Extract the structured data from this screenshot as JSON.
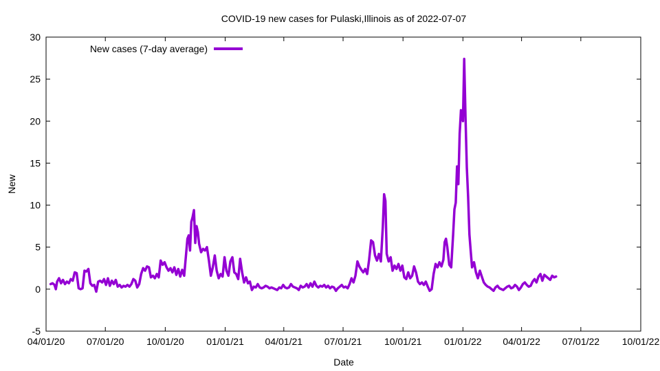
{
  "chart_data": {
    "type": "line",
    "title": "COVID-19 new cases for Pulaski,Illinois as of 2022-07-07",
    "xlabel": "Date",
    "ylabel": "New",
    "xlim": [
      "2020-04-01",
      "2022-10-01"
    ],
    "ylim": [
      -5,
      30
    ],
    "y_ticks": [
      -5,
      0,
      5,
      10,
      15,
      20,
      25,
      30
    ],
    "x_ticks": [
      {
        "date": "2020-04-01",
        "label": "04/01/20"
      },
      {
        "date": "2020-07-01",
        "label": "07/01/20"
      },
      {
        "date": "2020-10-01",
        "label": "10/01/20"
      },
      {
        "date": "2021-01-01",
        "label": "01/01/21"
      },
      {
        "date": "2021-04-01",
        "label": "04/01/21"
      },
      {
        "date": "2021-07-01",
        "label": "07/01/21"
      },
      {
        "date": "2021-10-01",
        "label": "10/01/21"
      },
      {
        "date": "2022-01-01",
        "label": "01/01/22"
      },
      {
        "date": "2022-04-01",
        "label": "04/01/22"
      },
      {
        "date": "2022-07-01",
        "label": "07/01/22"
      },
      {
        "date": "2022-10-01",
        "label": "10/01/22"
      }
    ],
    "legend_placement": "top-left",
    "grid": false,
    "series": [
      {
        "name": "New cases (7-day average)",
        "color": "#9400d3",
        "points": [
          [
            "2020-04-08",
            0.6
          ],
          [
            "2020-04-11",
            0.7
          ],
          [
            "2020-04-14",
            0.5
          ],
          [
            "2020-04-16",
            0.0
          ],
          [
            "2020-04-18",
            0.9
          ],
          [
            "2020-04-21",
            1.3
          ],
          [
            "2020-04-24",
            0.7
          ],
          [
            "2020-04-27",
            1.1
          ],
          [
            "2020-04-30",
            0.6
          ],
          [
            "2020-05-03",
            0.9
          ],
          [
            "2020-05-06",
            0.7
          ],
          [
            "2020-05-09",
            1.2
          ],
          [
            "2020-05-12",
            1.0
          ],
          [
            "2020-05-15",
            2.0
          ],
          [
            "2020-05-18",
            1.9
          ],
          [
            "2020-05-21",
            0.1
          ],
          [
            "2020-05-24",
            0.0
          ],
          [
            "2020-05-27",
            0.1
          ],
          [
            "2020-05-30",
            2.2
          ],
          [
            "2020-06-02",
            2.1
          ],
          [
            "2020-06-05",
            2.4
          ],
          [
            "2020-06-08",
            0.7
          ],
          [
            "2020-06-11",
            0.4
          ],
          [
            "2020-06-14",
            0.5
          ],
          [
            "2020-06-17",
            -0.3
          ],
          [
            "2020-06-20",
            0.9
          ],
          [
            "2020-06-23",
            1.0
          ],
          [
            "2020-06-26",
            0.8
          ],
          [
            "2020-06-29",
            1.2
          ],
          [
            "2020-07-02",
            0.5
          ],
          [
            "2020-07-05",
            1.3
          ],
          [
            "2020-07-08",
            0.4
          ],
          [
            "2020-07-11",
            1.0
          ],
          [
            "2020-07-14",
            0.6
          ],
          [
            "2020-07-17",
            1.1
          ],
          [
            "2020-07-20",
            0.3
          ],
          [
            "2020-07-23",
            0.5
          ],
          [
            "2020-07-26",
            0.2
          ],
          [
            "2020-07-29",
            0.4
          ],
          [
            "2020-08-01",
            0.3
          ],
          [
            "2020-08-04",
            0.5
          ],
          [
            "2020-08-07",
            0.3
          ],
          [
            "2020-08-10",
            0.6
          ],
          [
            "2020-08-13",
            1.2
          ],
          [
            "2020-08-16",
            1.0
          ],
          [
            "2020-08-19",
            0.2
          ],
          [
            "2020-08-22",
            0.6
          ],
          [
            "2020-08-25",
            1.8
          ],
          [
            "2020-08-28",
            2.5
          ],
          [
            "2020-08-31",
            2.2
          ],
          [
            "2020-09-03",
            2.7
          ],
          [
            "2020-09-06",
            2.6
          ],
          [
            "2020-09-09",
            1.4
          ],
          [
            "2020-09-12",
            1.6
          ],
          [
            "2020-09-15",
            1.3
          ],
          [
            "2020-09-18",
            1.8
          ],
          [
            "2020-09-21",
            1.4
          ],
          [
            "2020-09-24",
            3.4
          ],
          [
            "2020-09-27",
            2.9
          ],
          [
            "2020-09-30",
            3.2
          ],
          [
            "2020-10-03",
            2.6
          ],
          [
            "2020-10-06",
            2.2
          ],
          [
            "2020-10-09",
            2.5
          ],
          [
            "2020-10-12",
            2.0
          ],
          [
            "2020-10-15",
            2.6
          ],
          [
            "2020-10-18",
            1.7
          ],
          [
            "2020-10-21",
            2.4
          ],
          [
            "2020-10-24",
            1.5
          ],
          [
            "2020-10-27",
            2.3
          ],
          [
            "2020-10-30",
            1.6
          ],
          [
            "2020-11-02",
            4.2
          ],
          [
            "2020-11-04",
            6.0
          ],
          [
            "2020-11-06",
            6.4
          ],
          [
            "2020-11-08",
            4.6
          ],
          [
            "2020-11-10",
            8.0
          ],
          [
            "2020-11-12",
            8.6
          ],
          [
            "2020-11-14",
            9.4
          ],
          [
            "2020-11-16",
            5.5
          ],
          [
            "2020-11-18",
            7.5
          ],
          [
            "2020-11-20",
            6.8
          ],
          [
            "2020-11-22",
            5.4
          ],
          [
            "2020-11-25",
            4.4
          ],
          [
            "2020-11-28",
            4.8
          ],
          [
            "2020-12-01",
            4.6
          ],
          [
            "2020-12-04",
            5.0
          ],
          [
            "2020-12-07",
            3.4
          ],
          [
            "2020-12-10",
            1.6
          ],
          [
            "2020-12-13",
            2.6
          ],
          [
            "2020-12-16",
            4.0
          ],
          [
            "2020-12-19",
            2.2
          ],
          [
            "2020-12-22",
            1.3
          ],
          [
            "2020-12-25",
            1.8
          ],
          [
            "2020-12-28",
            1.5
          ],
          [
            "2020-12-31",
            3.8
          ],
          [
            "2021-01-03",
            2.2
          ],
          [
            "2021-01-06",
            1.6
          ],
          [
            "2021-01-09",
            3.3
          ],
          [
            "2021-01-12",
            3.8
          ],
          [
            "2021-01-15",
            2.0
          ],
          [
            "2021-01-18",
            1.8
          ],
          [
            "2021-01-21",
            1.2
          ],
          [
            "2021-01-24",
            3.6
          ],
          [
            "2021-01-27",
            2.0
          ],
          [
            "2021-01-30",
            0.8
          ],
          [
            "2021-02-02",
            1.4
          ],
          [
            "2021-02-05",
            0.7
          ],
          [
            "2021-02-08",
            0.9
          ],
          [
            "2021-02-11",
            -0.1
          ],
          [
            "2021-02-14",
            0.3
          ],
          [
            "2021-02-17",
            0.2
          ],
          [
            "2021-02-20",
            0.6
          ],
          [
            "2021-02-23",
            0.2
          ],
          [
            "2021-02-26",
            0.1
          ],
          [
            "2021-03-01",
            0.2
          ],
          [
            "2021-03-04",
            0.4
          ],
          [
            "2021-03-07",
            0.3
          ],
          [
            "2021-03-10",
            0.1
          ],
          [
            "2021-03-13",
            0.2
          ],
          [
            "2021-03-16",
            0.1
          ],
          [
            "2021-03-19",
            0.0
          ],
          [
            "2021-03-22",
            -0.1
          ],
          [
            "2021-03-25",
            0.2
          ],
          [
            "2021-03-28",
            0.1
          ],
          [
            "2021-03-31",
            0.5
          ],
          [
            "2021-04-03",
            0.2
          ],
          [
            "2021-04-06",
            0.1
          ],
          [
            "2021-04-09",
            0.2
          ],
          [
            "2021-04-12",
            0.6
          ],
          [
            "2021-04-15",
            0.3
          ],
          [
            "2021-04-18",
            0.2
          ],
          [
            "2021-04-21",
            0.1
          ],
          [
            "2021-04-24",
            -0.1
          ],
          [
            "2021-04-27",
            0.4
          ],
          [
            "2021-04-30",
            0.2
          ],
          [
            "2021-05-03",
            0.3
          ],
          [
            "2021-05-06",
            0.6
          ],
          [
            "2021-05-09",
            0.2
          ],
          [
            "2021-05-12",
            0.7
          ],
          [
            "2021-05-15",
            0.3
          ],
          [
            "2021-05-18",
            0.9
          ],
          [
            "2021-05-21",
            0.4
          ],
          [
            "2021-05-24",
            0.2
          ],
          [
            "2021-05-27",
            0.4
          ],
          [
            "2021-05-30",
            0.3
          ],
          [
            "2021-06-02",
            0.5
          ],
          [
            "2021-06-05",
            0.2
          ],
          [
            "2021-06-08",
            0.4
          ],
          [
            "2021-06-11",
            0.1
          ],
          [
            "2021-06-14",
            0.3
          ],
          [
            "2021-06-17",
            0.2
          ],
          [
            "2021-06-20",
            -0.2
          ],
          [
            "2021-06-23",
            0.1
          ],
          [
            "2021-06-26",
            0.3
          ],
          [
            "2021-06-29",
            0.5
          ],
          [
            "2021-07-02",
            0.2
          ],
          [
            "2021-07-05",
            0.3
          ],
          [
            "2021-07-08",
            0.1
          ],
          [
            "2021-07-11",
            0.6
          ],
          [
            "2021-07-14",
            1.3
          ],
          [
            "2021-07-17",
            0.8
          ],
          [
            "2021-07-20",
            1.6
          ],
          [
            "2021-07-23",
            3.3
          ],
          [
            "2021-07-26",
            2.7
          ],
          [
            "2021-07-29",
            2.3
          ],
          [
            "2021-08-01",
            2.0
          ],
          [
            "2021-08-04",
            2.4
          ],
          [
            "2021-08-07",
            1.8
          ],
          [
            "2021-08-10",
            3.5
          ],
          [
            "2021-08-13",
            5.8
          ],
          [
            "2021-08-16",
            5.6
          ],
          [
            "2021-08-19",
            4.0
          ],
          [
            "2021-08-22",
            3.4
          ],
          [
            "2021-08-25",
            4.2
          ],
          [
            "2021-08-28",
            3.3
          ],
          [
            "2021-08-31",
            7.4
          ],
          [
            "2021-09-02",
            11.3
          ],
          [
            "2021-09-04",
            10.5
          ],
          [
            "2021-09-06",
            4.2
          ],
          [
            "2021-09-09",
            3.3
          ],
          [
            "2021-09-12",
            3.8
          ],
          [
            "2021-09-15",
            2.2
          ],
          [
            "2021-09-18",
            2.8
          ],
          [
            "2021-09-21",
            2.4
          ],
          [
            "2021-09-24",
            3.0
          ],
          [
            "2021-09-27",
            2.2
          ],
          [
            "2021-09-30",
            2.8
          ],
          [
            "2021-10-03",
            1.4
          ],
          [
            "2021-10-06",
            1.2
          ],
          [
            "2021-10-09",
            2.0
          ],
          [
            "2021-10-12",
            1.3
          ],
          [
            "2021-10-15",
            1.6
          ],
          [
            "2021-10-18",
            2.7
          ],
          [
            "2021-10-21",
            2.0
          ],
          [
            "2021-10-24",
            0.9
          ],
          [
            "2021-10-27",
            0.6
          ],
          [
            "2021-10-30",
            0.8
          ],
          [
            "2021-11-02",
            0.5
          ],
          [
            "2021-11-05",
            0.9
          ],
          [
            "2021-11-08",
            0.3
          ],
          [
            "2021-11-11",
            -0.2
          ],
          [
            "2021-11-14",
            0.0
          ],
          [
            "2021-11-17",
            1.8
          ],
          [
            "2021-11-20",
            3.0
          ],
          [
            "2021-11-23",
            2.6
          ],
          [
            "2021-11-26",
            3.2
          ],
          [
            "2021-11-29",
            2.7
          ],
          [
            "2021-12-02",
            3.5
          ],
          [
            "2021-12-04",
            5.6
          ],
          [
            "2021-12-06",
            6.0
          ],
          [
            "2021-12-08",
            5.0
          ],
          [
            "2021-12-11",
            2.9
          ],
          [
            "2021-12-14",
            2.6
          ],
          [
            "2021-12-17",
            6.5
          ],
          [
            "2021-12-19",
            9.5
          ],
          [
            "2021-12-21",
            10.3
          ],
          [
            "2021-12-23",
            14.6
          ],
          [
            "2021-12-25",
            12.5
          ],
          [
            "2021-12-27",
            18.5
          ],
          [
            "2021-12-29",
            21.3
          ],
          [
            "2022-01-01",
            20.0
          ],
          [
            "2022-01-03",
            27.4
          ],
          [
            "2022-01-05",
            20.5
          ],
          [
            "2022-01-07",
            14.5
          ],
          [
            "2022-01-09",
            11.0
          ],
          [
            "2022-01-11",
            6.5
          ],
          [
            "2022-01-13",
            4.5
          ],
          [
            "2022-01-15",
            2.6
          ],
          [
            "2022-01-18",
            3.2
          ],
          [
            "2022-01-21",
            2.0
          ],
          [
            "2022-01-24",
            1.3
          ],
          [
            "2022-01-27",
            2.2
          ],
          [
            "2022-01-30",
            1.5
          ],
          [
            "2022-02-02",
            0.8
          ],
          [
            "2022-02-05",
            0.5
          ],
          [
            "2022-02-08",
            0.3
          ],
          [
            "2022-02-11",
            0.2
          ],
          [
            "2022-02-14",
            0.0
          ],
          [
            "2022-02-17",
            -0.2
          ],
          [
            "2022-02-20",
            0.2
          ],
          [
            "2022-02-23",
            0.4
          ],
          [
            "2022-02-26",
            0.1
          ],
          [
            "2022-03-01",
            0.0
          ],
          [
            "2022-03-04",
            -0.1
          ],
          [
            "2022-03-07",
            0.1
          ],
          [
            "2022-03-10",
            0.3
          ],
          [
            "2022-03-13",
            0.4
          ],
          [
            "2022-03-16",
            0.1
          ],
          [
            "2022-03-19",
            0.2
          ],
          [
            "2022-03-22",
            0.5
          ],
          [
            "2022-03-25",
            0.3
          ],
          [
            "2022-03-28",
            -0.1
          ],
          [
            "2022-03-31",
            0.2
          ],
          [
            "2022-04-03",
            0.6
          ],
          [
            "2022-04-06",
            0.8
          ],
          [
            "2022-04-09",
            0.5
          ],
          [
            "2022-04-12",
            0.3
          ],
          [
            "2022-04-15",
            0.4
          ],
          [
            "2022-04-18",
            0.9
          ],
          [
            "2022-04-21",
            1.2
          ],
          [
            "2022-04-24",
            0.8
          ],
          [
            "2022-04-27",
            1.5
          ],
          [
            "2022-04-30",
            1.8
          ],
          [
            "2022-05-03",
            1.0
          ],
          [
            "2022-05-06",
            1.7
          ],
          [
            "2022-05-09",
            1.5
          ],
          [
            "2022-05-12",
            1.3
          ],
          [
            "2022-05-15",
            1.1
          ],
          [
            "2022-05-18",
            1.6
          ],
          [
            "2022-05-21",
            1.4
          ],
          [
            "2022-05-24",
            1.5
          ]
        ]
      }
    ]
  }
}
